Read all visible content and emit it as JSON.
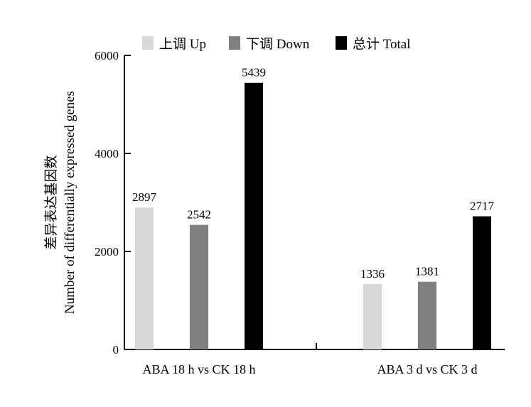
{
  "chart_data": {
    "type": "bar",
    "title": "",
    "xlabel": "",
    "ylabel_zh": "差异表达基因数",
    "ylabel_en": "Number of differentially expressed genes",
    "ylim": [
      0,
      6000
    ],
    "yticks": [
      "0",
      "2000",
      "4000",
      "6000"
    ],
    "ytick_values": [
      0,
      2000,
      4000,
      6000
    ],
    "categories": [
      "ABA 18 h  vs CK 18 h",
      "ABA 3 d  vs  CK 3 d"
    ],
    "series": [
      {
        "name": "上调 Up",
        "color": "#d9d9d9",
        "values": [
          2897,
          1336
        ]
      },
      {
        "name": "下调 Down",
        "color": "#808080",
        "values": [
          2542,
          1381
        ]
      },
      {
        "name": "总计 Total",
        "color": "#000000",
        "values": [
          5439,
          2717
        ]
      }
    ],
    "legend_position": "top",
    "grid": false
  }
}
